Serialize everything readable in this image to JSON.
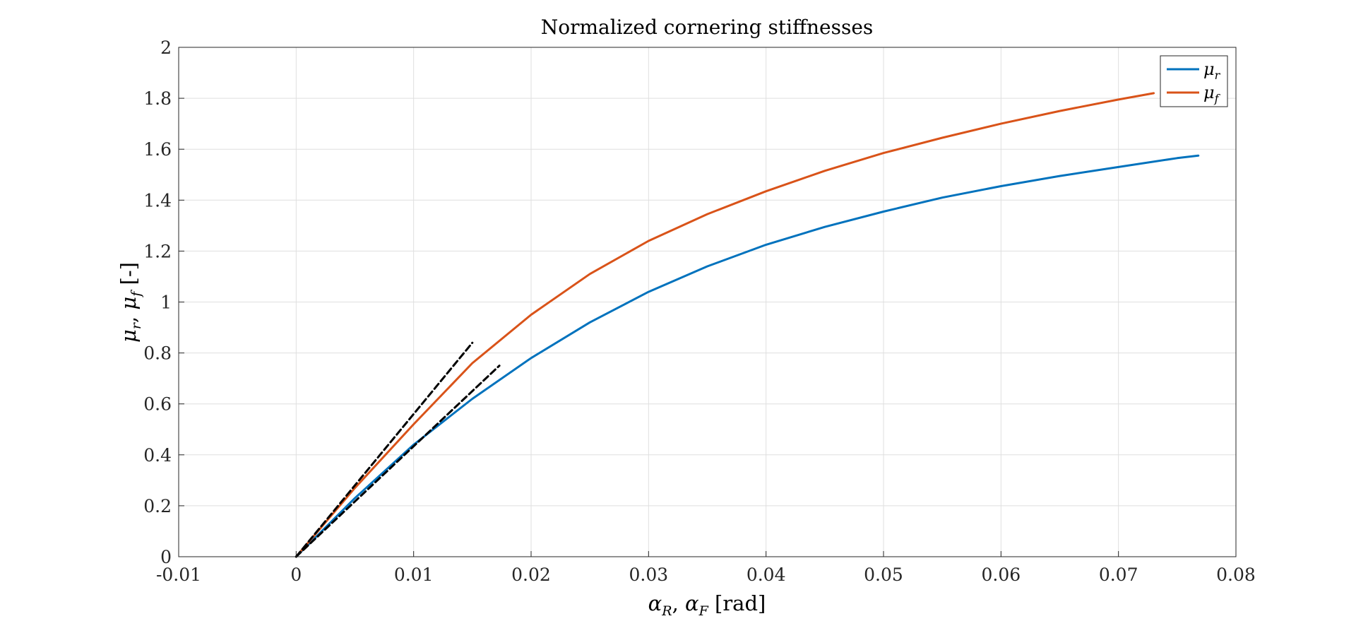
{
  "chart_data": {
    "type": "line",
    "title": "Normalized cornering stiffnesses",
    "xlabel": "αR, αF [rad]",
    "ylabel": "μr, μf [-]",
    "xlim": [
      -0.01,
      0.08
    ],
    "ylim": [
      0,
      2
    ],
    "xticks": [
      -0.01,
      0,
      0.01,
      0.02,
      0.03,
      0.04,
      0.05,
      0.06,
      0.07,
      0.08
    ],
    "xtick_labels": [
      "-0.01",
      "0",
      "0.01",
      "0.02",
      "0.03",
      "0.04",
      "0.05",
      "0.06",
      "0.07",
      "0.08"
    ],
    "yticks": [
      0,
      0.2,
      0.4,
      0.6,
      0.8,
      1,
      1.2,
      1.4,
      1.6,
      1.8,
      2
    ],
    "ytick_labels": [
      "0",
      "0.2",
      "0.4",
      "0.6",
      "0.8",
      "1",
      "1.2",
      "1.4",
      "1.6",
      "1.8",
      "2"
    ],
    "grid": true,
    "legend": "top-right",
    "series": [
      {
        "name": "μr",
        "color": "#0072BD",
        "style": "solid",
        "x": [
          0,
          0.005,
          0.01,
          0.015,
          0.02,
          0.025,
          0.03,
          0.035,
          0.04,
          0.045,
          0.05,
          0.055,
          0.06,
          0.065,
          0.07,
          0.075,
          0.0768
        ],
        "y": [
          0,
          0.23,
          0.44,
          0.62,
          0.78,
          0.92,
          1.04,
          1.14,
          1.225,
          1.295,
          1.355,
          1.41,
          1.455,
          1.495,
          1.53,
          1.565,
          1.575
        ]
      },
      {
        "name": "μf",
        "color": "#D95319",
        "style": "solid",
        "x": [
          0,
          0.005,
          0.01,
          0.015,
          0.02,
          0.025,
          0.03,
          0.035,
          0.04,
          0.045,
          0.05,
          0.055,
          0.06,
          0.065,
          0.07,
          0.073
        ],
        "y": [
          0,
          0.27,
          0.52,
          0.76,
          0.95,
          1.11,
          1.24,
          1.345,
          1.435,
          1.515,
          1.585,
          1.645,
          1.7,
          1.75,
          1.795,
          1.82
        ]
      },
      {
        "color": "#000000",
        "style": "dashed",
        "x": [
          0,
          0.015
        ],
        "y": [
          0,
          0.84
        ]
      },
      {
        "color": "#000000",
        "style": "dashed",
        "x": [
          0,
          0.0173
        ],
        "y": [
          0,
          0.75
        ]
      }
    ]
  }
}
